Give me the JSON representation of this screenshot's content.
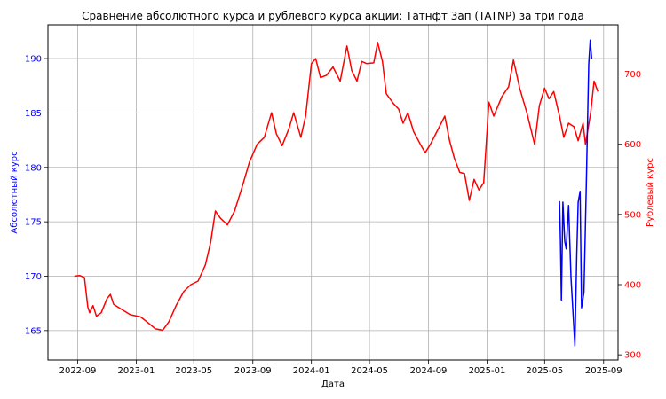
{
  "chart_data": {
    "type": "line",
    "title": "Сравнение абсолютного курса и рублевого курса акции: Татнфт 3ап (TATNP) за три года",
    "xlabel": "Дата",
    "ylabel_left": "Абсолютный курс",
    "ylabel_right": "Рублевый курс",
    "grid": true,
    "x_ticks": [
      "2022-09",
      "2023-01",
      "2023-05",
      "2023-09",
      "2024-01",
      "2024-05",
      "2024-09",
      "2025-01",
      "2025-05",
      "2025-09"
    ],
    "y_left_ticks": [
      165,
      170,
      175,
      180,
      185,
      190
    ],
    "y_right_ticks": [
      300,
      400,
      500,
      600,
      700
    ],
    "y_left_range": [
      162.3,
      193.1
    ],
    "y_right_range": [
      292.6,
      770.2
    ],
    "series": [
      {
        "axis": "right",
        "color": "#ff0000",
        "points": [
          [
            "2022-08-25",
            412
          ],
          [
            "2022-09-05",
            413
          ],
          [
            "2022-09-15",
            410
          ],
          [
            "2022-09-22",
            368
          ],
          [
            "2022-09-26",
            360
          ],
          [
            "2022-10-03",
            370
          ],
          [
            "2022-10-10",
            355
          ],
          [
            "2022-10-20",
            360
          ],
          [
            "2022-11-01",
            380
          ],
          [
            "2022-11-08",
            386
          ],
          [
            "2022-11-15",
            372
          ],
          [
            "2022-12-01",
            365
          ],
          [
            "2022-12-20",
            357
          ],
          [
            "2023-01-10",
            354
          ],
          [
            "2023-01-25",
            346
          ],
          [
            "2023-02-10",
            337
          ],
          [
            "2023-02-25",
            335
          ],
          [
            "2023-03-10",
            347
          ],
          [
            "2023-03-25",
            370
          ],
          [
            "2023-04-10",
            390
          ],
          [
            "2023-04-25",
            400
          ],
          [
            "2023-05-10",
            405
          ],
          [
            "2023-05-25",
            428
          ],
          [
            "2023-06-05",
            460
          ],
          [
            "2023-06-15",
            505
          ],
          [
            "2023-06-25",
            495
          ],
          [
            "2023-07-10",
            485
          ],
          [
            "2023-07-25",
            505
          ],
          [
            "2023-08-10",
            540
          ],
          [
            "2023-08-25",
            575
          ],
          [
            "2023-09-10",
            600
          ],
          [
            "2023-09-25",
            610
          ],
          [
            "2023-10-10",
            645
          ],
          [
            "2023-10-20",
            615
          ],
          [
            "2023-11-01",
            598
          ],
          [
            "2023-11-15",
            622
          ],
          [
            "2023-11-25",
            645
          ],
          [
            "2023-12-10",
            610
          ],
          [
            "2023-12-20",
            640
          ],
          [
            "2024-01-01",
            715
          ],
          [
            "2024-01-10",
            722
          ],
          [
            "2024-01-20",
            695
          ],
          [
            "2024-02-01",
            698
          ],
          [
            "2024-02-15",
            710
          ],
          [
            "2024-03-01",
            690
          ],
          [
            "2024-03-15",
            740
          ],
          [
            "2024-03-25",
            705
          ],
          [
            "2024-04-05",
            690
          ],
          [
            "2024-04-15",
            718
          ],
          [
            "2024-04-25",
            715
          ],
          [
            "2024-05-10",
            716
          ],
          [
            "2024-05-18",
            745
          ],
          [
            "2024-05-28",
            718
          ],
          [
            "2024-06-05",
            672
          ],
          [
            "2024-06-20",
            658
          ],
          [
            "2024-07-01",
            650
          ],
          [
            "2024-07-10",
            630
          ],
          [
            "2024-07-20",
            645
          ],
          [
            "2024-08-01",
            618
          ],
          [
            "2024-08-15",
            600
          ],
          [
            "2024-08-25",
            588
          ],
          [
            "2024-09-05",
            600
          ],
          [
            "2024-09-20",
            620
          ],
          [
            "2024-10-05",
            640
          ],
          [
            "2024-10-15",
            605
          ],
          [
            "2024-10-25",
            580
          ],
          [
            "2024-11-05",
            560
          ],
          [
            "2024-11-15",
            558
          ],
          [
            "2024-11-25",
            520
          ],
          [
            "2024-12-05",
            550
          ],
          [
            "2024-12-15",
            535
          ],
          [
            "2024-12-25",
            545
          ],
          [
            "2025-01-05",
            660
          ],
          [
            "2025-01-15",
            640
          ],
          [
            "2025-02-01",
            668
          ],
          [
            "2025-02-15",
            682
          ],
          [
            "2025-02-25",
            720
          ],
          [
            "2025-03-10",
            680
          ],
          [
            "2025-03-25",
            645
          ],
          [
            "2025-04-10",
            600
          ],
          [
            "2025-04-20",
            655
          ],
          [
            "2025-05-01",
            680
          ],
          [
            "2025-05-10",
            665
          ],
          [
            "2025-05-20",
            675
          ],
          [
            "2025-06-01",
            640
          ],
          [
            "2025-06-10",
            610
          ],
          [
            "2025-06-20",
            630
          ],
          [
            "2025-07-01",
            625
          ],
          [
            "2025-07-10",
            605
          ],
          [
            "2025-07-20",
            630
          ],
          [
            "2025-07-25",
            600
          ],
          [
            "2025-08-05",
            645
          ],
          [
            "2025-08-12",
            690
          ],
          [
            "2025-08-20",
            675
          ]
        ]
      },
      {
        "axis": "left",
        "color": "#0000ff",
        "points": [
          [
            "2025-06-01",
            176.9
          ],
          [
            "2025-06-03",
            173
          ],
          [
            "2025-06-05",
            167.8
          ],
          [
            "2025-06-08",
            176.8
          ],
          [
            "2025-06-12",
            173.2
          ],
          [
            "2025-06-15",
            172.5
          ],
          [
            "2025-06-20",
            176.5
          ],
          [
            "2025-06-25",
            169.9
          ],
          [
            "2025-07-01",
            165.2
          ],
          [
            "2025-07-03",
            163.6
          ],
          [
            "2025-07-07",
            172.0
          ],
          [
            "2025-07-10",
            176.8
          ],
          [
            "2025-07-14",
            177.8
          ],
          [
            "2025-07-17",
            167.1
          ],
          [
            "2025-07-22",
            168.5
          ],
          [
            "2025-07-27",
            178.5
          ],
          [
            "2025-08-01",
            189.5
          ],
          [
            "2025-08-04",
            191.7
          ],
          [
            "2025-08-07",
            190.0
          ]
        ]
      }
    ]
  }
}
